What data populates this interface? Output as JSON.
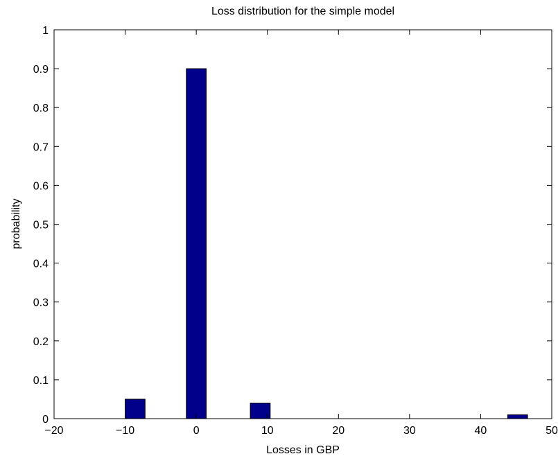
{
  "chart_data": {
    "type": "bar",
    "title": "Loss distribution for the simple model",
    "xlabel": "Losses in GBP",
    "ylabel": "probability",
    "xlim": [
      -20,
      50
    ],
    "ylim": [
      0,
      1
    ],
    "xticks": [
      -20,
      -10,
      0,
      10,
      20,
      30,
      40,
      50
    ],
    "xtick_labels": [
      "−20",
      "−10",
      "0",
      "10",
      "20",
      "30",
      "40",
      "50"
    ],
    "yticks": [
      0,
      0.1,
      0.2,
      0.3,
      0.4,
      0.5,
      0.6,
      0.7,
      0.8,
      0.9,
      1
    ],
    "ytick_labels": [
      "0",
      "0.1",
      "0.2",
      "0.3",
      "0.4",
      "0.5",
      "0.6",
      "0.7",
      "0.8",
      "0.9",
      "1"
    ],
    "bar_width": 2.8,
    "bar_color": "#00008b",
    "grid": false,
    "data": [
      {
        "x": -8.6,
        "y": 0.05
      },
      {
        "x": 0,
        "y": 0.9
      },
      {
        "x": 9,
        "y": 0.04
      },
      {
        "x": 45.2,
        "y": 0.01
      }
    ]
  }
}
